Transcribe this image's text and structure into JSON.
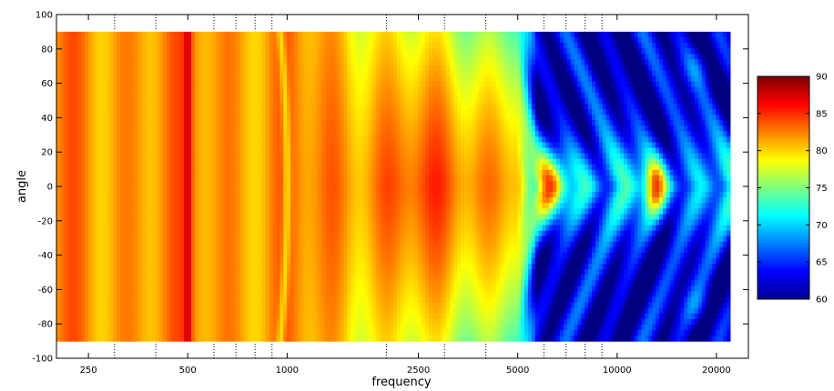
{
  "chart_data": {
    "type": "heatmap",
    "xlabel": "frequency",
    "ylabel": "angle",
    "x_scale": "log",
    "xlim": [
      200,
      25000
    ],
    "ylim": [
      -100,
      100
    ],
    "x_ticks": [
      {
        "value": 250,
        "label": "250"
      },
      {
        "value": 500,
        "label": "500"
      },
      {
        "value": 1000,
        "label": "1000"
      },
      {
        "value": 2500,
        "label": "2500"
      },
      {
        "value": 5000,
        "label": "5000"
      },
      {
        "value": 10000,
        "label": "10000"
      },
      {
        "value": 20000,
        "label": "20000"
      }
    ],
    "y_ticks": [
      100,
      80,
      60,
      40,
      20,
      0,
      -20,
      -40,
      -60,
      -80,
      -100
    ],
    "colorbar": {
      "min": 60,
      "max": 90,
      "ticks": [
        90,
        85,
        80,
        75,
        70,
        65,
        60
      ],
      "colormap": "jet"
    },
    "data_extent": {
      "freq_min": 200,
      "freq_max": 22000,
      "angle_min": -90,
      "angle_max": 90
    },
    "level_description_points": [
      {
        "frequency": 250,
        "angle": 0,
        "level": 83
      },
      {
        "frequency": 500,
        "angle": 0,
        "level": 86
      },
      {
        "frequency": 1000,
        "angle": 0,
        "level": 79
      },
      {
        "frequency": 2500,
        "angle": 0,
        "level": 83
      },
      {
        "frequency": 2500,
        "angle": 80,
        "level": 77
      },
      {
        "frequency": 4000,
        "angle": 80,
        "level": 73
      },
      {
        "frequency": 6000,
        "angle": 0,
        "level": 83
      },
      {
        "frequency": 8000,
        "angle": 80,
        "level": 63
      },
      {
        "frequency": 13000,
        "angle": 0,
        "level": 87
      },
      {
        "frequency": 20000,
        "angle": 80,
        "level": 62
      }
    ]
  }
}
